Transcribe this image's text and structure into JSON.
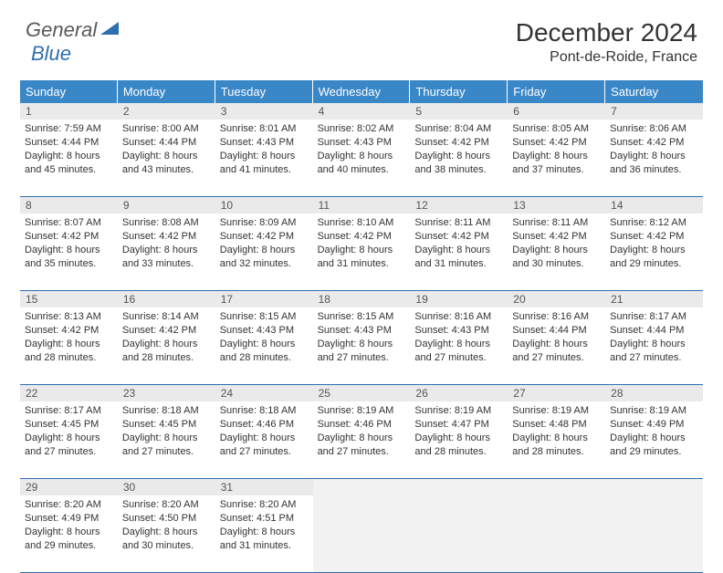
{
  "logo": {
    "text1": "General",
    "text2": "Blue"
  },
  "title": "December 2024",
  "location": "Pont-de-Roide, France",
  "colors": {
    "header_bg": "#3a87c8",
    "header_text": "#ffffff",
    "rule": "#2d6fb0",
    "daynum_bg": "#eaeaea",
    "empty_bg": "#f2f2f2",
    "body_text": "#333333",
    "logo_gray": "#5a5a5a",
    "logo_blue": "#2d6fb0"
  },
  "fonts": {
    "title_size": 28,
    "location_size": 16,
    "weekday_size": 13,
    "daynum_size": 12,
    "body_size": 11
  },
  "weekdays": [
    "Sunday",
    "Monday",
    "Tuesday",
    "Wednesday",
    "Thursday",
    "Friday",
    "Saturday"
  ],
  "weeks": [
    [
      {
        "n": "1",
        "sunrise": "Sunrise: 7:59 AM",
        "sunset": "Sunset: 4:44 PM",
        "d1": "Daylight: 8 hours",
        "d2": "and 45 minutes."
      },
      {
        "n": "2",
        "sunrise": "Sunrise: 8:00 AM",
        "sunset": "Sunset: 4:44 PM",
        "d1": "Daylight: 8 hours",
        "d2": "and 43 minutes."
      },
      {
        "n": "3",
        "sunrise": "Sunrise: 8:01 AM",
        "sunset": "Sunset: 4:43 PM",
        "d1": "Daylight: 8 hours",
        "d2": "and 41 minutes."
      },
      {
        "n": "4",
        "sunrise": "Sunrise: 8:02 AM",
        "sunset": "Sunset: 4:43 PM",
        "d1": "Daylight: 8 hours",
        "d2": "and 40 minutes."
      },
      {
        "n": "5",
        "sunrise": "Sunrise: 8:04 AM",
        "sunset": "Sunset: 4:42 PM",
        "d1": "Daylight: 8 hours",
        "d2": "and 38 minutes."
      },
      {
        "n": "6",
        "sunrise": "Sunrise: 8:05 AM",
        "sunset": "Sunset: 4:42 PM",
        "d1": "Daylight: 8 hours",
        "d2": "and 37 minutes."
      },
      {
        "n": "7",
        "sunrise": "Sunrise: 8:06 AM",
        "sunset": "Sunset: 4:42 PM",
        "d1": "Daylight: 8 hours",
        "d2": "and 36 minutes."
      }
    ],
    [
      {
        "n": "8",
        "sunrise": "Sunrise: 8:07 AM",
        "sunset": "Sunset: 4:42 PM",
        "d1": "Daylight: 8 hours",
        "d2": "and 35 minutes."
      },
      {
        "n": "9",
        "sunrise": "Sunrise: 8:08 AM",
        "sunset": "Sunset: 4:42 PM",
        "d1": "Daylight: 8 hours",
        "d2": "and 33 minutes."
      },
      {
        "n": "10",
        "sunrise": "Sunrise: 8:09 AM",
        "sunset": "Sunset: 4:42 PM",
        "d1": "Daylight: 8 hours",
        "d2": "and 32 minutes."
      },
      {
        "n": "11",
        "sunrise": "Sunrise: 8:10 AM",
        "sunset": "Sunset: 4:42 PM",
        "d1": "Daylight: 8 hours",
        "d2": "and 31 minutes."
      },
      {
        "n": "12",
        "sunrise": "Sunrise: 8:11 AM",
        "sunset": "Sunset: 4:42 PM",
        "d1": "Daylight: 8 hours",
        "d2": "and 31 minutes."
      },
      {
        "n": "13",
        "sunrise": "Sunrise: 8:11 AM",
        "sunset": "Sunset: 4:42 PM",
        "d1": "Daylight: 8 hours",
        "d2": "and 30 minutes."
      },
      {
        "n": "14",
        "sunrise": "Sunrise: 8:12 AM",
        "sunset": "Sunset: 4:42 PM",
        "d1": "Daylight: 8 hours",
        "d2": "and 29 minutes."
      }
    ],
    [
      {
        "n": "15",
        "sunrise": "Sunrise: 8:13 AM",
        "sunset": "Sunset: 4:42 PM",
        "d1": "Daylight: 8 hours",
        "d2": "and 28 minutes."
      },
      {
        "n": "16",
        "sunrise": "Sunrise: 8:14 AM",
        "sunset": "Sunset: 4:42 PM",
        "d1": "Daylight: 8 hours",
        "d2": "and 28 minutes."
      },
      {
        "n": "17",
        "sunrise": "Sunrise: 8:15 AM",
        "sunset": "Sunset: 4:43 PM",
        "d1": "Daylight: 8 hours",
        "d2": "and 28 minutes."
      },
      {
        "n": "18",
        "sunrise": "Sunrise: 8:15 AM",
        "sunset": "Sunset: 4:43 PM",
        "d1": "Daylight: 8 hours",
        "d2": "and 27 minutes."
      },
      {
        "n": "19",
        "sunrise": "Sunrise: 8:16 AM",
        "sunset": "Sunset: 4:43 PM",
        "d1": "Daylight: 8 hours",
        "d2": "and 27 minutes."
      },
      {
        "n": "20",
        "sunrise": "Sunrise: 8:16 AM",
        "sunset": "Sunset: 4:44 PM",
        "d1": "Daylight: 8 hours",
        "d2": "and 27 minutes."
      },
      {
        "n": "21",
        "sunrise": "Sunrise: 8:17 AM",
        "sunset": "Sunset: 4:44 PM",
        "d1": "Daylight: 8 hours",
        "d2": "and 27 minutes."
      }
    ],
    [
      {
        "n": "22",
        "sunrise": "Sunrise: 8:17 AM",
        "sunset": "Sunset: 4:45 PM",
        "d1": "Daylight: 8 hours",
        "d2": "and 27 minutes."
      },
      {
        "n": "23",
        "sunrise": "Sunrise: 8:18 AM",
        "sunset": "Sunset: 4:45 PM",
        "d1": "Daylight: 8 hours",
        "d2": "and 27 minutes."
      },
      {
        "n": "24",
        "sunrise": "Sunrise: 8:18 AM",
        "sunset": "Sunset: 4:46 PM",
        "d1": "Daylight: 8 hours",
        "d2": "and 27 minutes."
      },
      {
        "n": "25",
        "sunrise": "Sunrise: 8:19 AM",
        "sunset": "Sunset: 4:46 PM",
        "d1": "Daylight: 8 hours",
        "d2": "and 27 minutes."
      },
      {
        "n": "26",
        "sunrise": "Sunrise: 8:19 AM",
        "sunset": "Sunset: 4:47 PM",
        "d1": "Daylight: 8 hours",
        "d2": "and 28 minutes."
      },
      {
        "n": "27",
        "sunrise": "Sunrise: 8:19 AM",
        "sunset": "Sunset: 4:48 PM",
        "d1": "Daylight: 8 hours",
        "d2": "and 28 minutes."
      },
      {
        "n": "28",
        "sunrise": "Sunrise: 8:19 AM",
        "sunset": "Sunset: 4:49 PM",
        "d1": "Daylight: 8 hours",
        "d2": "and 29 minutes."
      }
    ],
    [
      {
        "n": "29",
        "sunrise": "Sunrise: 8:20 AM",
        "sunset": "Sunset: 4:49 PM",
        "d1": "Daylight: 8 hours",
        "d2": "and 29 minutes."
      },
      {
        "n": "30",
        "sunrise": "Sunrise: 8:20 AM",
        "sunset": "Sunset: 4:50 PM",
        "d1": "Daylight: 8 hours",
        "d2": "and 30 minutes."
      },
      {
        "n": "31",
        "sunrise": "Sunrise: 8:20 AM",
        "sunset": "Sunset: 4:51 PM",
        "d1": "Daylight: 8 hours",
        "d2": "and 31 minutes."
      },
      null,
      null,
      null,
      null
    ]
  ]
}
